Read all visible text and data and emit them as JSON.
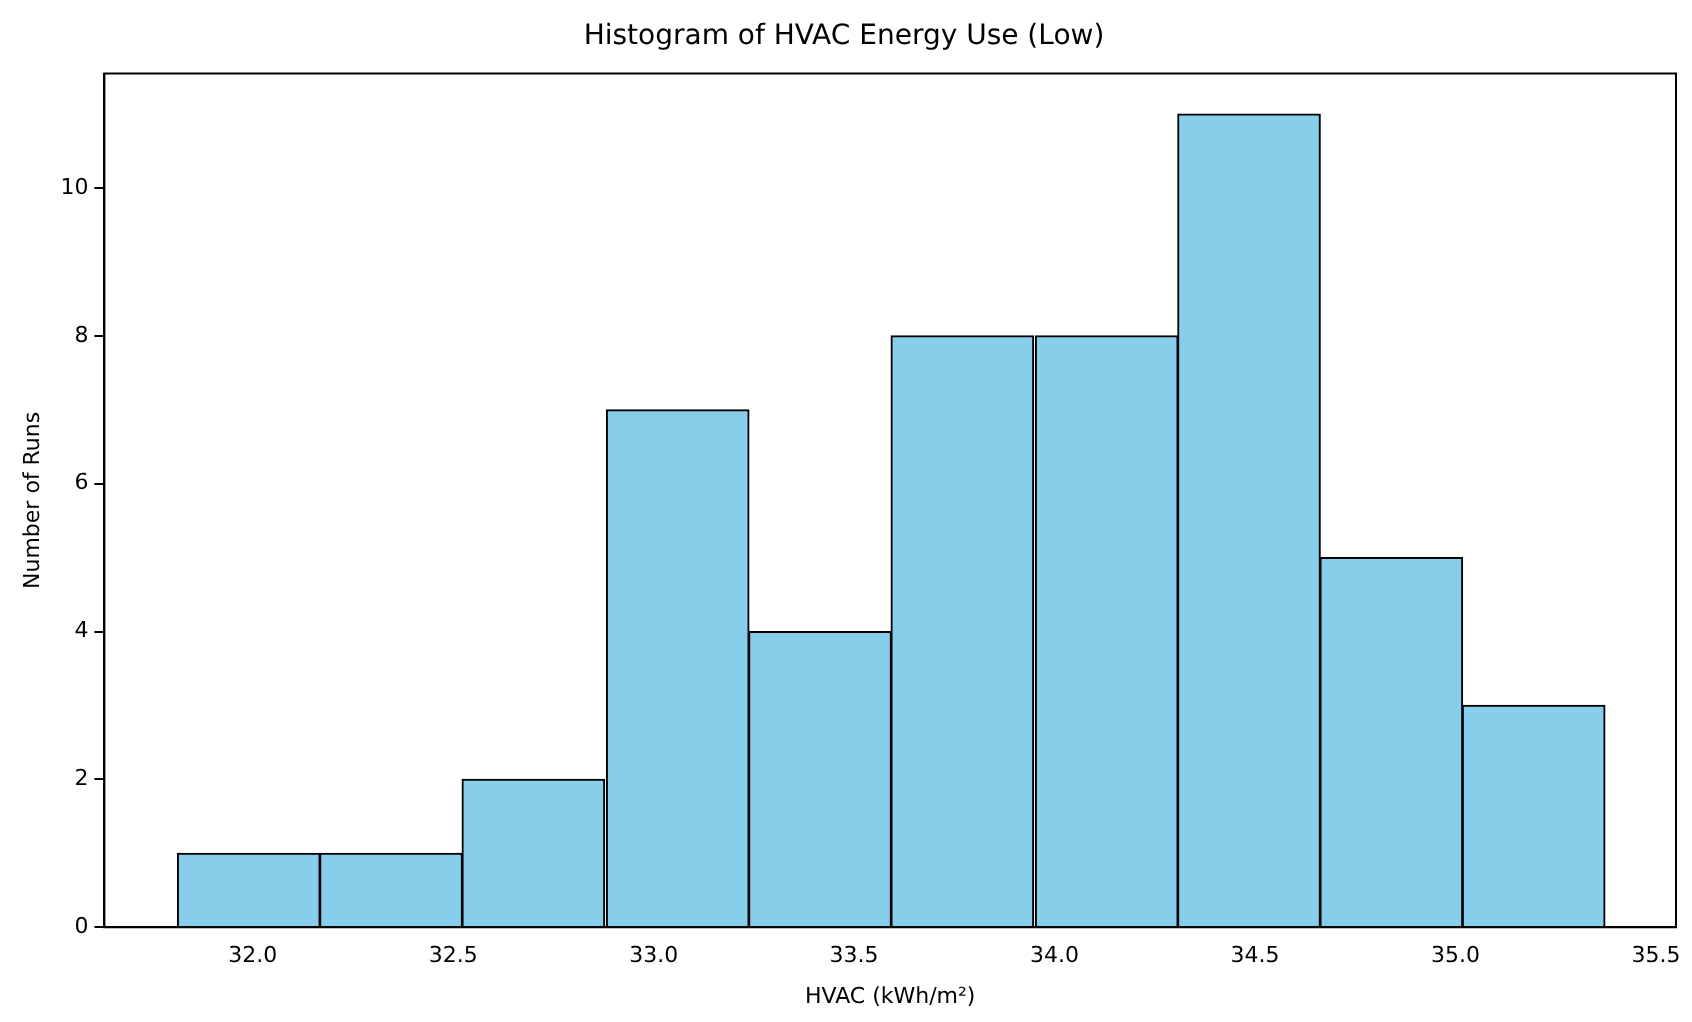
{
  "chart_data": {
    "type": "histogram",
    "title": "Histogram of HVAC Energy Use (Low)",
    "xlabel": "HVAC (kWh/m²)",
    "ylabel": "Number of Runs",
    "bins": [
      31.81,
      32.17,
      32.52,
      32.88,
      33.24,
      33.59,
      33.95,
      34.31,
      34.66,
      35.02,
      35.37
    ],
    "values": [
      1,
      1,
      2,
      7,
      4,
      8,
      8,
      11,
      5,
      3
    ],
    "color": "#87ceeb",
    "xlim": [
      31.63,
      35.55
    ],
    "xticks": [
      {
        "value": 32,
        "label": "32.0"
      },
      {
        "value": 32.5,
        "label": "32.5"
      },
      {
        "value": 33,
        "label": "33.0"
      },
      {
        "value": 33.5,
        "label": "33.5"
      },
      {
        "value": 34,
        "label": "34.0"
      },
      {
        "value": 34.5,
        "label": "34.5"
      },
      {
        "value": 35,
        "label": "35.0"
      },
      {
        "value": 35.5,
        "label": "35.5"
      }
    ],
    "ylim": [
      0,
      11.55
    ],
    "yticks": [
      0,
      2,
      4,
      6,
      8,
      10
    ],
    "grid": false,
    "legend": false
  }
}
